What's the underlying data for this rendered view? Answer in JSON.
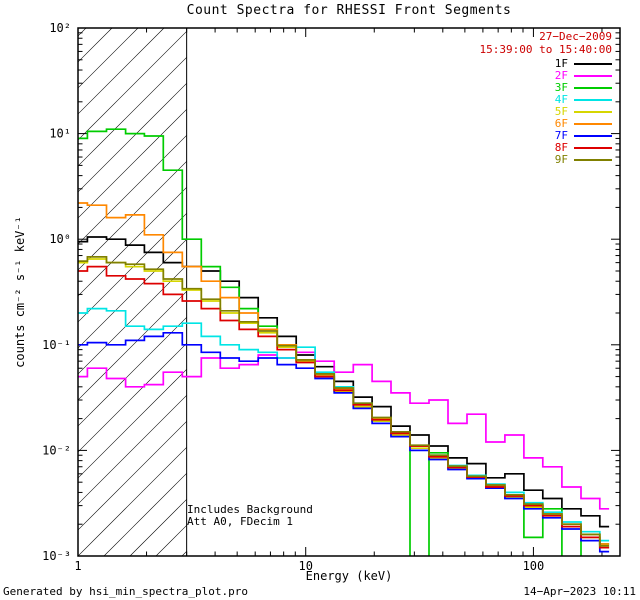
{
  "chart_data": {
    "type": "line",
    "subtype": "step-histogram-spectra",
    "title": "Count Spectra for RHESSI Front Segments",
    "xlabel": "Energy (keV)",
    "ylabel": "counts cm⁻² s⁻¹ keV⁻¹",
    "xscale": "log",
    "yscale": "log",
    "xlim": [
      1,
      240
    ],
    "ylim": [
      0.001,
      100
    ],
    "grid": false,
    "x_ticks": [
      1,
      10,
      100
    ],
    "x_tick_labels": [
      "1",
      "10",
      "100"
    ],
    "y_ticks": [
      0.001,
      0.01,
      0.1,
      1,
      10,
      100
    ],
    "y_tick_labels": [
      "10⁻³",
      "10⁻²",
      "10⁻¹",
      "10⁰",
      "10¹",
      "10²"
    ],
    "excluded_region": {
      "from": 1,
      "to": 3,
      "style": "hatched"
    },
    "annotations": [
      "Includes Background",
      "Att A0, FDecim 1"
    ],
    "legend": {
      "position": "top-right",
      "date": "27−Dec−2009",
      "time_range": "15:39:00 to 15:40:00",
      "datetime_color": "#cc0000"
    },
    "colors": {
      "axis": "#000000",
      "background": "#ffffff"
    },
    "x": [
      1.0,
      1.21,
      1.47,
      1.78,
      2.15,
      2.61,
      3.16,
      3.83,
      4.64,
      5.62,
      6.81,
      8.25,
      10.0,
      12.1,
      14.7,
      17.8,
      21.5,
      26.1,
      31.6,
      38.3,
      46.4,
      56.2,
      68.1,
      82.5,
      100,
      121,
      147,
      178,
      215
    ],
    "series": [
      {
        "name": "1F",
        "color": "#000000",
        "values": [
          0.95,
          1.05,
          1.0,
          0.88,
          0.75,
          0.6,
          0.55,
          0.5,
          0.4,
          0.28,
          0.18,
          0.12,
          0.08,
          0.062,
          0.045,
          0.032,
          0.026,
          0.017,
          0.014,
          0.011,
          0.0085,
          0.0075,
          0.0055,
          0.006,
          0.0042,
          0.0035,
          0.0028,
          0.0024,
          0.0019
        ]
      },
      {
        "name": "2F",
        "color": "#ff00ff",
        "values": [
          0.05,
          0.06,
          0.048,
          0.04,
          0.042,
          0.055,
          0.05,
          0.075,
          0.06,
          0.065,
          0.08,
          0.075,
          0.085,
          0.07,
          0.055,
          0.065,
          0.045,
          0.035,
          0.028,
          0.03,
          0.018,
          0.022,
          0.012,
          0.014,
          0.0085,
          0.007,
          0.0045,
          0.0035,
          0.0028
        ]
      },
      {
        "name": "3F",
        "color": "#00cc00",
        "values": [
          9.0,
          10.5,
          11.0,
          10.0,
          9.5,
          4.5,
          1.0,
          0.55,
          0.35,
          0.22,
          0.15,
          0.1,
          0.072,
          0.05,
          0.036,
          0.027,
          0.019,
          0.014,
          0.0002,
          0.0095,
          0.007,
          0.0055,
          0.0045,
          0.0038,
          0.0015,
          0.0028,
          0.0008,
          0.0016,
          0.0013
        ]
      },
      {
        "name": "4F",
        "color": "#00e5e5",
        "values": [
          0.2,
          0.22,
          0.21,
          0.15,
          0.14,
          0.15,
          0.16,
          0.12,
          0.1,
          0.09,
          0.085,
          0.075,
          0.095,
          0.055,
          0.04,
          0.028,
          0.02,
          0.015,
          0.011,
          0.009,
          0.0072,
          0.0058,
          0.0048,
          0.004,
          0.0032,
          0.0026,
          0.0021,
          0.0017,
          0.0014
        ]
      },
      {
        "name": "5F",
        "color": "#d6d600",
        "values": [
          0.6,
          0.65,
          0.6,
          0.55,
          0.5,
          0.4,
          0.33,
          0.26,
          0.2,
          0.16,
          0.13,
          0.095,
          0.07,
          0.05,
          0.036,
          0.026,
          0.019,
          0.014,
          0.0105,
          0.0085,
          0.0068,
          0.0055,
          0.0044,
          0.0036,
          0.0029,
          0.0024,
          0.0019,
          0.0015,
          0.0012
        ]
      },
      {
        "name": "6F",
        "color": "#ff8800",
        "values": [
          2.2,
          2.1,
          1.6,
          1.7,
          1.1,
          0.75,
          0.55,
          0.4,
          0.28,
          0.2,
          0.14,
          0.1,
          0.072,
          0.052,
          0.038,
          0.027,
          0.02,
          0.0145,
          0.011,
          0.0088,
          0.007,
          0.0056,
          0.0046,
          0.0037,
          0.003,
          0.0025,
          0.002,
          0.0016,
          0.0013
        ]
      },
      {
        "name": "7F",
        "color": "#0000ff",
        "values": [
          0.1,
          0.105,
          0.1,
          0.11,
          0.12,
          0.13,
          0.1,
          0.085,
          0.075,
          0.07,
          0.075,
          0.065,
          0.06,
          0.048,
          0.035,
          0.025,
          0.018,
          0.0135,
          0.01,
          0.0082,
          0.0066,
          0.0054,
          0.0044,
          0.0035,
          0.0028,
          0.0023,
          0.0018,
          0.0014,
          0.0011
        ]
      },
      {
        "name": "8F",
        "color": "#dd0000",
        "values": [
          0.5,
          0.55,
          0.45,
          0.42,
          0.38,
          0.3,
          0.26,
          0.22,
          0.17,
          0.14,
          0.12,
          0.09,
          0.068,
          0.05,
          0.037,
          0.027,
          0.0195,
          0.0145,
          0.011,
          0.0087,
          0.0069,
          0.0056,
          0.0045,
          0.0037,
          0.003,
          0.0024,
          0.0019,
          0.0015,
          0.0012
        ]
      },
      {
        "name": "9F",
        "color": "#808000",
        "values": [
          0.62,
          0.68,
          0.6,
          0.58,
          0.52,
          0.42,
          0.34,
          0.27,
          0.21,
          0.165,
          0.135,
          0.098,
          0.072,
          0.053,
          0.039,
          0.028,
          0.0205,
          0.015,
          0.0112,
          0.009,
          0.0071,
          0.0057,
          0.0047,
          0.0038,
          0.0031,
          0.0025,
          0.002,
          0.0016,
          0.00125
        ]
      }
    ]
  },
  "footer": {
    "generated_by": "Generated by hsi_min_spectra_plot.pro",
    "datetime": "14−Apr−2023 10:11"
  }
}
